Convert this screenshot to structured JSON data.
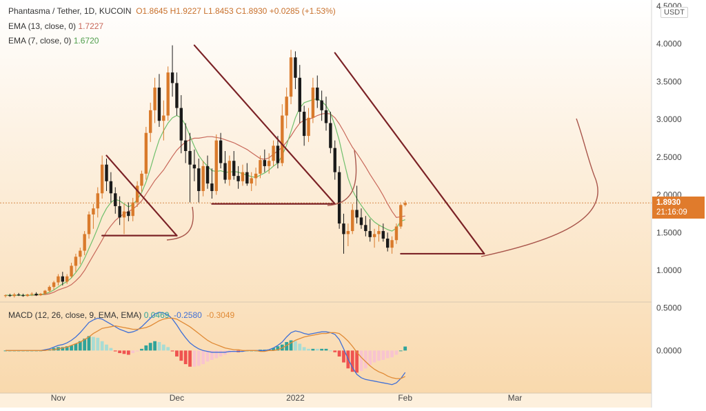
{
  "symbol": {
    "title": "Phantasma / Tether, 1D, KUCOIN",
    "ohlc": "O1.8645  H1.9227  L1.8453  C1.8930  +0.0285 (+1.53%)",
    "ema13_label": "EMA (13, close, 0)",
    "ema13_value": "1.7227",
    "ema7_label": "EMA (7, close, 0)",
    "ema7_value": "1.6720"
  },
  "currency_badge": "USDT",
  "price_badge": {
    "price": "1.8930",
    "countdown": "21:16:09"
  },
  "macd": {
    "label": "MACD (12, 26, close, 9, EMA, EMA)",
    "hist_value": "0.0469",
    "macd_value": "-0.2580",
    "signal_value": "-0.3049"
  },
  "colors": {
    "up": "#d97a2b",
    "down": "#1a1a1a",
    "ema13": "#c8685a",
    "ema7": "#6fbf6b",
    "trendline": "#7b2226",
    "curve": "#a8554b",
    "macd_line": "#3f6fd6",
    "signal_line": "#e08a35",
    "badge_bg": "#e07b2c",
    "hist_up": "#2fa39a",
    "hist_up_light": "#a8dcd4",
    "hist_down": "#ef5350",
    "hist_down_light": "#f8c4cf"
  },
  "chart_data": {
    "type": "candlestick",
    "price_axis": {
      "ticks": [
        "1.0000",
        "1.5000",
        "2.0000",
        "2.5000",
        "3.0000",
        "3.5000",
        "4.0000",
        "4.5000"
      ],
      "range": [
        0.58,
        4.58
      ]
    },
    "macd_axis": {
      "ticks": [
        "0.0000",
        "0.5000"
      ],
      "range": [
        -0.5,
        0.57
      ]
    },
    "time_axis": {
      "labels": [
        "Nov",
        "Dec",
        "2022",
        "Feb",
        "Mar"
      ],
      "label_indices": [
        12,
        39,
        66,
        91,
        116
      ]
    },
    "last_price": 1.893,
    "candles": [
      [
        0.66,
        0.68,
        0.64,
        0.67
      ],
      [
        0.67,
        0.69,
        0.65,
        0.66
      ],
      [
        0.66,
        0.7,
        0.64,
        0.68
      ],
      [
        0.68,
        0.7,
        0.66,
        0.67
      ],
      [
        0.67,
        0.69,
        0.65,
        0.66
      ],
      [
        0.66,
        0.69,
        0.65,
        0.68
      ],
      [
        0.68,
        0.71,
        0.66,
        0.69
      ],
      [
        0.69,
        0.71,
        0.66,
        0.67
      ],
      [
        0.67,
        0.7,
        0.66,
        0.69
      ],
      [
        0.69,
        0.74,
        0.68,
        0.73
      ],
      [
        0.73,
        0.8,
        0.71,
        0.78
      ],
      [
        0.78,
        0.86,
        0.74,
        0.84
      ],
      [
        0.84,
        0.95,
        0.8,
        0.92
      ],
      [
        0.92,
        0.98,
        0.8,
        0.85
      ],
      [
        0.85,
        0.95,
        0.82,
        0.92
      ],
      [
        0.92,
        1.1,
        0.9,
        1.06
      ],
      [
        1.06,
        1.22,
        0.98,
        1.18
      ],
      [
        1.18,
        1.3,
        1.08,
        1.26
      ],
      [
        1.26,
        1.52,
        1.2,
        1.48
      ],
      [
        1.48,
        1.78,
        1.42,
        1.74
      ],
      [
        1.74,
        1.88,
        1.55,
        1.82
      ],
      [
        1.82,
        2.1,
        1.7,
        2.02
      ],
      [
        2.02,
        2.52,
        1.95,
        2.4
      ],
      [
        2.4,
        2.48,
        2.05,
        2.18
      ],
      [
        2.18,
        2.3,
        1.9,
        2.02
      ],
      [
        2.02,
        2.1,
        1.75,
        1.85
      ],
      [
        1.85,
        1.98,
        1.6,
        1.7
      ],
      [
        1.7,
        1.88,
        1.48,
        1.78
      ],
      [
        1.78,
        1.9,
        1.65,
        1.72
      ],
      [
        1.72,
        1.96,
        1.65,
        1.9
      ],
      [
        1.9,
        2.18,
        1.84,
        2.12
      ],
      [
        2.12,
        2.32,
        2.04,
        2.28
      ],
      [
        2.28,
        2.9,
        2.2,
        2.82
      ],
      [
        2.82,
        3.22,
        2.7,
        3.12
      ],
      [
        3.12,
        3.55,
        2.95,
        3.42
      ],
      [
        3.42,
        3.6,
        2.9,
        2.98
      ],
      [
        2.98,
        3.25,
        2.72,
        3.05
      ],
      [
        3.05,
        3.7,
        2.98,
        3.62
      ],
      [
        3.62,
        3.98,
        3.3,
        3.48
      ],
      [
        3.48,
        3.62,
        3.05,
        3.15
      ],
      [
        3.15,
        3.32,
        2.55,
        2.72
      ],
      [
        2.72,
        2.95,
        2.42,
        2.58
      ],
      [
        2.58,
        2.82,
        1.9,
        2.4
      ],
      [
        2.4,
        2.6,
        2.18,
        2.35
      ],
      [
        2.35,
        2.48,
        1.9,
        2.05
      ],
      [
        2.05,
        2.45,
        1.98,
        2.38
      ],
      [
        2.38,
        2.52,
        2.08,
        2.15
      ],
      [
        2.15,
        2.35,
        1.95,
        2.05
      ],
      [
        2.05,
        2.8,
        2.0,
        2.72
      ],
      [
        2.72,
        2.82,
        2.35,
        2.42
      ],
      [
        2.42,
        2.58,
        2.15,
        2.2
      ],
      [
        2.2,
        2.52,
        2.12,
        2.45
      ],
      [
        2.45,
        2.58,
        2.2,
        2.25
      ],
      [
        2.25,
        2.38,
        2.08,
        2.18
      ],
      [
        2.18,
        2.4,
        2.12,
        2.3
      ],
      [
        2.3,
        2.42,
        2.12,
        2.15
      ],
      [
        2.15,
        2.3,
        2.05,
        2.22
      ],
      [
        2.22,
        2.36,
        2.12,
        2.28
      ],
      [
        2.28,
        2.52,
        2.22,
        2.46
      ],
      [
        2.46,
        2.6,
        2.3,
        2.38
      ],
      [
        2.38,
        2.55,
        2.28,
        2.45
      ],
      [
        2.45,
        2.72,
        2.38,
        2.65
      ],
      [
        2.65,
        2.78,
        2.35,
        2.42
      ],
      [
        2.42,
        3.2,
        2.38,
        3.05
      ],
      [
        3.05,
        3.42,
        2.88,
        3.3
      ],
      [
        3.3,
        3.92,
        3.2,
        3.82
      ],
      [
        3.82,
        3.9,
        3.4,
        3.55
      ],
      [
        3.55,
        3.72,
        2.95,
        3.1
      ],
      [
        3.1,
        3.18,
        2.65,
        2.78
      ],
      [
        2.78,
        3.15,
        2.7,
        3.02
      ],
      [
        3.02,
        3.55,
        2.95,
        3.42
      ],
      [
        3.42,
        3.58,
        3.15,
        3.25
      ],
      [
        3.25,
        3.38,
        2.98,
        3.12
      ],
      [
        3.12,
        3.3,
        2.85,
        2.95
      ],
      [
        2.95,
        3.1,
        2.55,
        2.62
      ],
      [
        2.62,
        2.72,
        2.2,
        2.3
      ],
      [
        2.3,
        2.38,
        1.55,
        1.62
      ],
      [
        1.62,
        1.75,
        1.22,
        1.48
      ],
      [
        1.48,
        1.62,
        1.32,
        1.52
      ],
      [
        1.52,
        1.88,
        1.48,
        1.8
      ],
      [
        1.8,
        2.12,
        1.62,
        1.7
      ],
      [
        1.7,
        1.82,
        1.55,
        1.6
      ],
      [
        1.6,
        1.72,
        1.45,
        1.52
      ],
      [
        1.52,
        1.68,
        1.38,
        1.44
      ],
      [
        1.44,
        1.55,
        1.3,
        1.48
      ],
      [
        1.48,
        1.6,
        1.38,
        1.52
      ],
      [
        1.52,
        1.62,
        1.38,
        1.42
      ],
      [
        1.42,
        1.5,
        1.25,
        1.3
      ],
      [
        1.3,
        1.45,
        1.22,
        1.4
      ],
      [
        1.4,
        1.62,
        1.35,
        1.58
      ],
      [
        1.58,
        1.88,
        1.55,
        1.8645
      ],
      [
        1.8645,
        1.9227,
        1.8453,
        1.893
      ]
    ],
    "ema13": [
      0.67,
      0.67,
      0.67,
      0.67,
      0.67,
      0.67,
      0.67,
      0.67,
      0.68,
      0.68,
      0.69,
      0.71,
      0.74,
      0.76,
      0.78,
      0.81,
      0.86,
      0.92,
      1.0,
      1.1,
      1.2,
      1.3,
      1.4,
      1.51,
      1.59,
      1.66,
      1.71,
      1.75,
      1.78,
      1.81,
      1.86,
      1.92,
      2.01,
      2.1,
      2.19,
      2.26,
      2.33,
      2.42,
      2.51,
      2.59,
      2.65,
      2.7,
      2.73,
      2.75,
      2.75,
      2.76,
      2.77,
      2.77,
      2.76,
      2.75,
      2.73,
      2.71,
      2.69,
      2.66,
      2.63,
      2.6,
      2.56,
      2.52,
      2.48,
      2.47,
      2.49,
      2.54,
      2.58,
      2.63,
      2.7,
      2.78,
      2.87,
      2.95,
      2.99,
      3.0,
      3.02,
      3.05,
      3.07,
      3.08,
      3.07,
      3.02,
      2.94,
      2.84,
      2.73,
      2.63,
      2.55,
      2.46,
      2.37,
      2.27,
      2.18,
      2.09,
      1.99,
      1.88,
      1.78,
      1.7,
      1.71,
      1.72
    ],
    "ema7": [
      0.67,
      0.67,
      0.67,
      0.67,
      0.67,
      0.67,
      0.67,
      0.68,
      0.68,
      0.69,
      0.71,
      0.74,
      0.78,
      0.82,
      0.85,
      0.9,
      0.97,
      1.05,
      1.16,
      1.29,
      1.42,
      1.56,
      1.71,
      1.82,
      1.9,
      1.94,
      1.92,
      1.88,
      1.84,
      1.87,
      1.94,
      2.03,
      2.17,
      2.35,
      2.55,
      2.73,
      2.85,
      2.95,
      3.02,
      3.05,
      3.02,
      2.92,
      2.78,
      2.64,
      2.52,
      2.44,
      2.38,
      2.32,
      2.31,
      2.32,
      2.3,
      2.3,
      2.31,
      2.3,
      2.28,
      2.26,
      2.24,
      2.23,
      2.26,
      2.29,
      2.33,
      2.38,
      2.42,
      2.52,
      2.66,
      2.84,
      3.02,
      3.15,
      3.22,
      3.24,
      3.26,
      3.27,
      3.24,
      3.18,
      3.08,
      2.92,
      2.72,
      2.46,
      2.22,
      2.06,
      1.95,
      1.86,
      1.78,
      1.7,
      1.64,
      1.6,
      1.57,
      1.54,
      1.52,
      1.56,
      1.65,
      1.67
    ],
    "macd": [
      0.0,
      0.0,
      0.0,
      0.0,
      0.0,
      0.0,
      0.0,
      0.0,
      0.0,
      0.01,
      0.02,
      0.04,
      0.06,
      0.07,
      0.09,
      0.12,
      0.16,
      0.21,
      0.27,
      0.33,
      0.36,
      0.38,
      0.37,
      0.34,
      0.31,
      0.28,
      0.25,
      0.23,
      0.21,
      0.22,
      0.24,
      0.28,
      0.33,
      0.38,
      0.43,
      0.45,
      0.44,
      0.42,
      0.37,
      0.3,
      0.22,
      0.15,
      0.09,
      0.05,
      0.02,
      0.0,
      -0.01,
      -0.02,
      -0.02,
      -0.02,
      -0.02,
      -0.01,
      -0.01,
      -0.01,
      -0.01,
      0.0,
      0.0,
      0.0,
      0.0,
      0.0,
      0.01,
      0.03,
      0.06,
      0.1,
      0.16,
      0.21,
      0.23,
      0.22,
      0.2,
      0.19,
      0.2,
      0.21,
      0.22,
      0.22,
      0.21,
      0.19,
      0.13,
      0.02,
      -0.1,
      -0.2,
      -0.28,
      -0.32,
      -0.34,
      -0.35,
      -0.36,
      -0.37,
      -0.38,
      -0.39,
      -0.4,
      -0.38,
      -0.33,
      -0.258
    ],
    "signal": [
      0.0,
      0.0,
      0.0,
      0.0,
      0.0,
      0.0,
      0.0,
      0.0,
      0.0,
      0.0,
      0.01,
      0.01,
      0.02,
      0.03,
      0.04,
      0.06,
      0.08,
      0.1,
      0.13,
      0.16,
      0.2,
      0.23,
      0.26,
      0.27,
      0.28,
      0.29,
      0.28,
      0.27,
      0.26,
      0.25,
      0.25,
      0.26,
      0.27,
      0.29,
      0.32,
      0.35,
      0.37,
      0.38,
      0.38,
      0.37,
      0.34,
      0.31,
      0.28,
      0.24,
      0.2,
      0.16,
      0.12,
      0.09,
      0.07,
      0.05,
      0.03,
      0.02,
      0.01,
      0.01,
      0.0,
      0.0,
      0.0,
      0.0,
      -0.01,
      -0.01,
      0.0,
      0.0,
      0.01,
      0.03,
      0.06,
      0.09,
      0.12,
      0.14,
      0.16,
      0.17,
      0.18,
      0.19,
      0.2,
      0.2,
      0.21,
      0.21,
      0.2,
      0.16,
      0.11,
      0.05,
      -0.02,
      -0.08,
      -0.13,
      -0.18,
      -0.22,
      -0.25,
      -0.27,
      -0.3,
      -0.32,
      -0.33,
      -0.33,
      -0.3049
    ],
    "trendlines": [
      {
        "from": [
          23,
          2.52
        ],
        "to": [
          39,
          1.46
        ]
      },
      {
        "from": [
          22,
          1.46
        ],
        "to": [
          39,
          1.46
        ]
      },
      {
        "from": [
          43,
          3.98
        ],
        "to": [
          75,
          1.88
        ]
      },
      {
        "from": [
          47,
          1.88
        ],
        "to": [
          75,
          1.88
        ]
      },
      {
        "from": [
          75,
          3.88
        ],
        "to": [
          109,
          1.22
        ]
      },
      {
        "from": [
          90,
          1.22
        ],
        "to": [
          109,
          1.22
        ]
      }
    ]
  }
}
